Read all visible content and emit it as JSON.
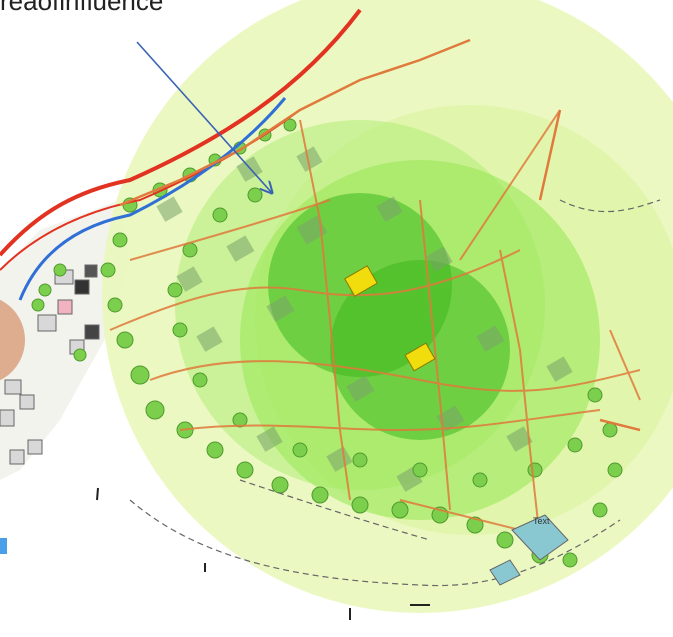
{
  "caption": {
    "text": "reaofinfluence"
  },
  "map": {
    "plan_label": "Text",
    "colors": {
      "outer_zone": "#e7f7b7",
      "mid_zone": "#9be85a",
      "inner_zone": "#3cb81e",
      "site_marker": "#f1dc0d",
      "main_road": "#e23322",
      "secondary_road": "#e07a3c",
      "water_line": "#2f6fd6",
      "arrow": "#3a63b4"
    },
    "icons": [
      "arrow-icon",
      "site-marker-icon",
      "tree-icon",
      "building-icon"
    ]
  }
}
